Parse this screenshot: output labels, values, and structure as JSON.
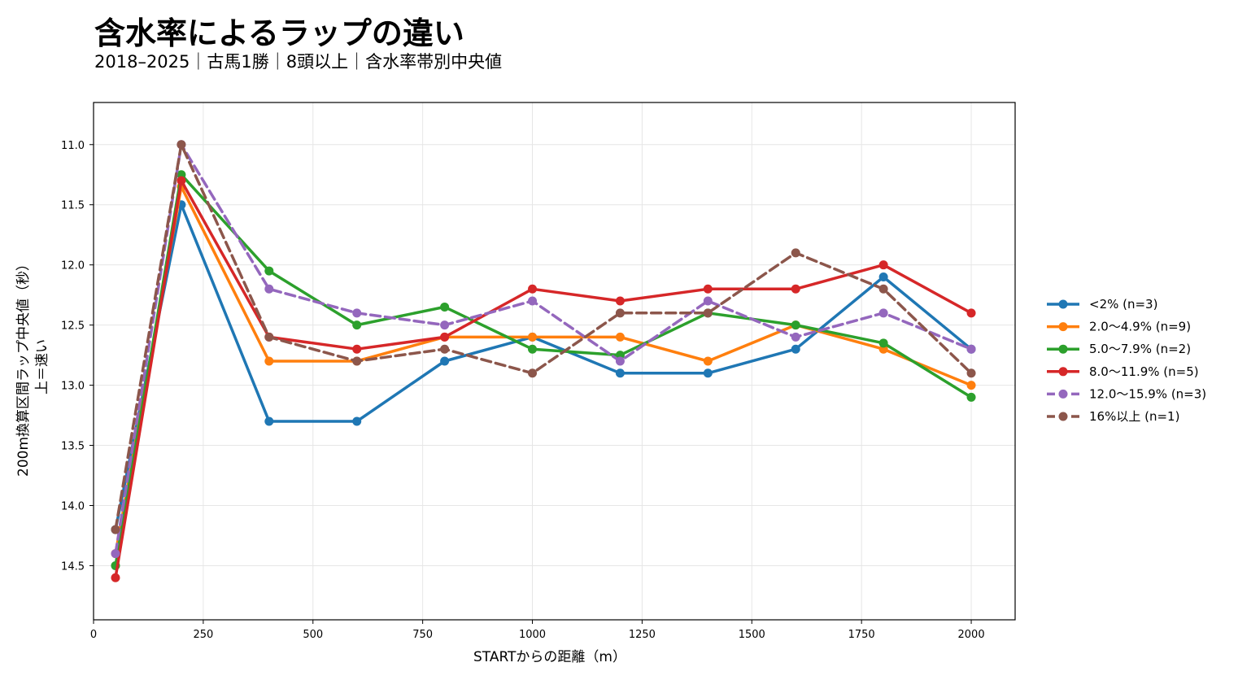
{
  "chart_data": {
    "type": "line",
    "title": "含水率によるラップの違い",
    "subtitle": "2018–2025｜古馬1勝｜8頭以上｜含水率帯別中央値",
    "xlabel": "STARTからの距離（m）",
    "ylabel_line1": "200m換算区間ラップ中央値（秒）",
    "ylabel_line2": "上＝速い",
    "xlim": [
      0,
      2100
    ],
    "ylim": [
      14.95,
      10.65
    ],
    "y_inverted": true,
    "xticks": [
      0,
      250,
      500,
      750,
      1000,
      1250,
      1500,
      1750,
      2000
    ],
    "yticks": [
      11.0,
      11.5,
      12.0,
      12.5,
      13.0,
      13.5,
      14.0,
      14.5
    ],
    "grid": true,
    "legend_position": "right",
    "x": [
      50,
      200,
      400,
      600,
      800,
      1000,
      1200,
      1400,
      1600,
      1800,
      2000
    ],
    "series": [
      {
        "name": "<2%  (n=3)",
        "color": "#1f77b4",
        "dashed": false,
        "values": [
          14.2,
          11.5,
          13.3,
          13.3,
          12.8,
          12.6,
          12.9,
          12.9,
          12.7,
          12.1,
          12.7
        ]
      },
      {
        "name": "2.0〜4.9%  (n=9)",
        "color": "#ff7f0e",
        "dashed": false,
        "values": [
          14.4,
          11.35,
          12.8,
          12.8,
          12.6,
          12.6,
          12.6,
          12.8,
          12.5,
          12.7,
          13.0
        ]
      },
      {
        "name": "5.0〜7.9%  (n=2)",
        "color": "#2ca02c",
        "dashed": false,
        "values": [
          14.5,
          11.25,
          12.05,
          12.5,
          12.35,
          12.7,
          12.75,
          12.4,
          12.5,
          12.65,
          13.1
        ]
      },
      {
        "name": "8.0〜11.9%  (n=5)",
        "color": "#d62728",
        "dashed": false,
        "values": [
          14.6,
          11.3,
          12.6,
          12.7,
          12.6,
          12.2,
          12.3,
          12.2,
          12.2,
          12.0,
          12.4
        ]
      },
      {
        "name": "12.0〜15.9%  (n=3)",
        "color": "#9467bd",
        "dashed": true,
        "values": [
          14.4,
          11.0,
          12.2,
          12.4,
          12.5,
          12.3,
          12.8,
          12.3,
          12.6,
          12.4,
          12.7
        ]
      },
      {
        "name": "16%以上  (n=1)",
        "color": "#8c564b",
        "dashed": true,
        "values": [
          14.2,
          11.0,
          12.6,
          12.8,
          12.7,
          12.9,
          12.4,
          12.4,
          11.9,
          12.2,
          12.9
        ]
      }
    ]
  }
}
